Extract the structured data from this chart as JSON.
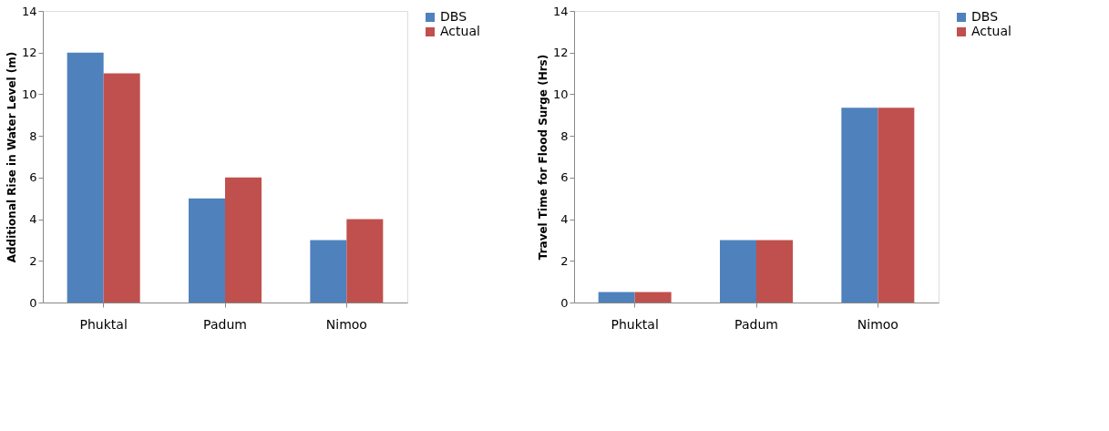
{
  "chart_data": [
    {
      "type": "bar",
      "ylabel": "Additional Rise in Water Level (m)",
      "categories": [
        "Phuktal",
        "Padum",
        "Nimoo"
      ],
      "ylim": [
        0,
        14
      ],
      "yticks": [
        0,
        2,
        4,
        6,
        8,
        10,
        12,
        14
      ],
      "grid": false,
      "legend": "right",
      "series": [
        {
          "name": "DBS",
          "color": "#4f81bd",
          "values": [
            12,
            5,
            3
          ]
        },
        {
          "name": "Actual",
          "color": "#c0504d",
          "values": [
            11,
            6,
            4
          ]
        }
      ]
    },
    {
      "type": "bar",
      "ylabel": "Travel Time for Flood Surge (Hrs)",
      "categories": [
        "Phuktal",
        "Padum",
        "Nimoo"
      ],
      "ylim": [
        0,
        14
      ],
      "yticks": [
        0,
        2,
        4,
        6,
        8,
        10,
        12,
        14
      ],
      "grid": false,
      "legend": "right",
      "series": [
        {
          "name": "DBS",
          "color": "#4f81bd",
          "values": [
            0.5,
            3,
            9.35
          ]
        },
        {
          "name": "Actual",
          "color": "#c0504d",
          "values": [
            0.5,
            3,
            9.35
          ]
        }
      ]
    }
  ]
}
